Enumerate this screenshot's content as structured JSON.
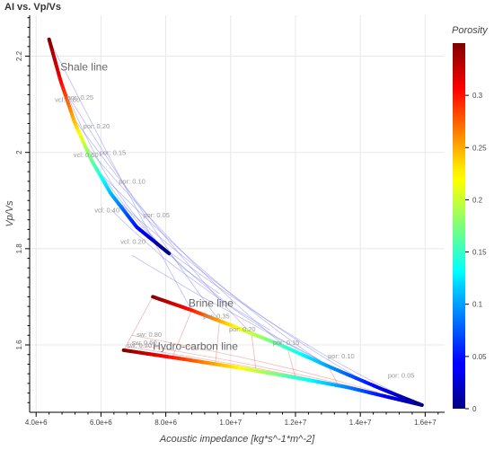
{
  "chart_data": {
    "type": "line",
    "title": "AI vs. Vp/Vs",
    "xlabel": "Acoustic impedance [kg*s^-1*m^-2]",
    "ylabel": "Vp/Vs",
    "xlim": [
      3800000,
      16600000
    ],
    "ylim": [
      1.46,
      2.285
    ],
    "x_ticks": [
      4000000,
      6000000,
      8000000,
      10000000,
      12000000,
      14000000,
      16000000
    ],
    "x_tick_labels": [
      "4.0e+6",
      "6.0e+6",
      "8.0e+6",
      "1.0e+7",
      "1.2e+7",
      "1.4e+7",
      "1.6e+7"
    ],
    "y_ticks": [
      1.6,
      1.8,
      2.0,
      2.2
    ],
    "y_tick_labels": [
      "1.6",
      "1.8",
      "2",
      "2.2"
    ],
    "grid": true,
    "colorbar": {
      "title": "Porosity",
      "range": [
        0,
        0.35
      ],
      "ticks": [
        0,
        0.05,
        0.1,
        0.15,
        0.2,
        0.25,
        0.3
      ],
      "tick_labels": [
        "0",
        "0.05",
        "0.1",
        "0.15",
        "0.2",
        "0.25",
        "0.3"
      ],
      "colormap": "jet"
    },
    "series": [
      {
        "name": "Shale line",
        "color_by": "porosity",
        "points": [
          {
            "x": 4400000,
            "y": 2.235,
            "porosity": 0.35
          },
          {
            "x": 4750000,
            "y": 2.15,
            "porosity": 0.31
          },
          {
            "x": 5200000,
            "y": 2.06,
            "porosity": 0.24
          },
          {
            "x": 5700000,
            "y": 1.985,
            "porosity": 0.17
          },
          {
            "x": 6300000,
            "y": 1.915,
            "porosity": 0.11
          },
          {
            "x": 7100000,
            "y": 1.845,
            "porosity": 0.05
          },
          {
            "x": 8100000,
            "y": 1.79,
            "porosity": 0.0
          }
        ]
      },
      {
        "name": "Brine line",
        "color_by": "porosity",
        "points": [
          {
            "x": 7600000,
            "y": 1.7,
            "porosity": 0.35
          },
          {
            "x": 8800000,
            "y": 1.672,
            "porosity": 0.3
          },
          {
            "x": 10000000,
            "y": 1.641,
            "porosity": 0.23
          },
          {
            "x": 11500000,
            "y": 1.601,
            "porosity": 0.16
          },
          {
            "x": 13000000,
            "y": 1.556,
            "porosity": 0.1
          },
          {
            "x": 14600000,
            "y": 1.51,
            "porosity": 0.04
          },
          {
            "x": 15900000,
            "y": 1.475,
            "porosity": 0.0
          }
        ]
      },
      {
        "name": "Hydro-carbon line",
        "color_by": "porosity",
        "points": [
          {
            "x": 6700000,
            "y": 1.589,
            "porosity": 0.35
          },
          {
            "x": 8500000,
            "y": 1.571,
            "porosity": 0.29
          },
          {
            "x": 10300000,
            "y": 1.552,
            "porosity": 0.22
          },
          {
            "x": 12000000,
            "y": 1.532,
            "porosity": 0.15
          },
          {
            "x": 13600000,
            "y": 1.512,
            "porosity": 0.09
          },
          {
            "x": 15900000,
            "y": 1.475,
            "porosity": 0.0
          }
        ]
      }
    ],
    "annotations": [
      {
        "text": "Shale line",
        "x": 4750000,
        "y": 2.17,
        "size": "large"
      },
      {
        "text": "Brine line",
        "x": 8700000,
        "y": 1.679,
        "size": "large"
      },
      {
        "text": "Hydro-carbon line",
        "x": 7600000,
        "y": 1.59,
        "size": "large"
      },
      {
        "text": "vcl: 0.80",
        "x": 4580000,
        "y": 2.105,
        "size": "small"
      },
      {
        "text": "vcl: 0.60",
        "x": 5150000,
        "y": 1.99,
        "size": "small"
      },
      {
        "text": "vcl: 0.40",
        "x": 5800000,
        "y": 1.875,
        "size": "small"
      },
      {
        "text": "vcl: 0.20",
        "x": 6600000,
        "y": 1.81,
        "size": "small"
      },
      {
        "text": "por: 0.25",
        "x": 4950000,
        "y": 2.11,
        "size": "small"
      },
      {
        "text": "por: 0.20",
        "x": 5450000,
        "y": 2.05,
        "size": "small"
      },
      {
        "text": "por: 0.15",
        "x": 5950000,
        "y": 1.995,
        "size": "small"
      },
      {
        "text": "por: 0.10",
        "x": 6550000,
        "y": 1.935,
        "size": "small"
      },
      {
        "text": "por: 0.05",
        "x": 7300000,
        "y": 1.865,
        "size": "small"
      },
      {
        "text": "por: 0.35",
        "x": 9150000,
        "y": 1.655,
        "size": "small"
      },
      {
        "text": "por: 0.20",
        "x": 9950000,
        "y": 1.628,
        "size": "small"
      },
      {
        "text": "por: 0.15",
        "x": 11300000,
        "y": 1.6,
        "size": "small"
      },
      {
        "text": "por: 0.10",
        "x": 13000000,
        "y": 1.572,
        "size": "small"
      },
      {
        "text": "por: 0.05",
        "x": 14850000,
        "y": 1.532,
        "size": "small"
      },
      {
        "text": "sw: 0.80",
        "x": 7100000,
        "y": 1.617,
        "size": "small"
      },
      {
        "text": "sw: 0.60",
        "x": 6950000,
        "y": 1.6,
        "size": "small"
      },
      {
        "text": "sw: 0.20",
        "x": 6800000,
        "y": 1.594,
        "size": "small"
      }
    ]
  }
}
